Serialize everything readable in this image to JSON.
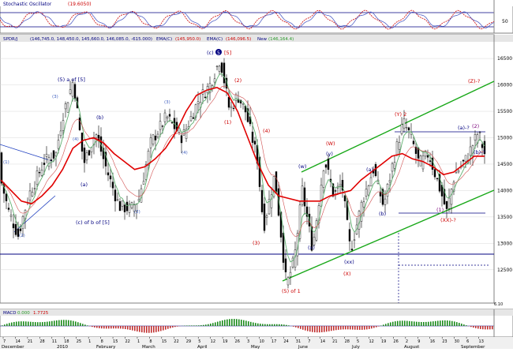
{
  "panels": {
    "stochastic": {
      "title": "Stochastic Oscillator",
      "value": "(19.6050)",
      "levels": [
        "50"
      ]
    },
    "price": {
      "header_symbol": "SPDR/J",
      "header_ohlc": "(146,745.0, 148,450.0, 145,660.0, 146,085.0, -615.000)",
      "header_ema1_label": "EMA(C)",
      "header_ema1_value": "(145,950.0)",
      "header_ema2_label": "EMA(C)",
      "header_ema2_value": "(146,096.5)",
      "header_new_label": "New",
      "header_new_value": "(146,164.4)"
    },
    "macd": {
      "title": "MACD",
      "value1": "0.000",
      "value2": "1.7725"
    }
  },
  "annotations": {
    "c5_label": "(c)",
    "c5_circle": "5",
    "c5_bracket": "[5]",
    "a_of_5": "(5) a of [5]",
    "c_of_b_of_5": "(c) of b of [5]",
    "five_of_1": "(5) of 1",
    "y2_label": "(Y) 2",
    "z_label": "(Z)-?",
    "a_q_label": "(a)-?",
    "b_q_label": "(b)-?",
    "xx_q_label": "(XX)-?",
    "w_red": "(W)",
    "w_blue": "(w)",
    "x_red": "(X)",
    "x_blue": "(x)",
    "xx_blue": "(xx)",
    "y_blue": "(y)",
    "paren_1": "(1)",
    "paren_2": "(2)",
    "paren_3": "(3)",
    "paren_4": "(4)",
    "paren_5": "(5)",
    "paren_a": "(a)",
    "paren_b": "(b)",
    "paren_2_purple": "(2)",
    "paren_1_purple": "(1)"
  },
  "colors": {
    "price_ma": "#e00000",
    "fast_ma": "#4fa860",
    "channel": "#18a818",
    "horizontal": "#000080",
    "wave_red": "#cc0000",
    "wave_blue": "#000080",
    "wave_purple": "#7a007a"
  },
  "chart_data": {
    "type": "candlestick",
    "y_axis": {
      "ticks": [
        12500,
        13000,
        13500,
        14000,
        14500,
        15000,
        15500,
        16000,
        16500
      ],
      "range": [
        11900,
        16800
      ]
    },
    "x_axis": {
      "months": [
        "December",
        "2010",
        "February",
        "March",
        "April",
        "May",
        "June",
        "July",
        "August",
        "September"
      ],
      "day_ticks": [
        "7",
        "14",
        "21",
        "28",
        "11",
        "18",
        "25",
        "1",
        "8",
        "15",
        "22",
        "1",
        "8",
        "15",
        "22",
        "29",
        "5",
        "12",
        "19",
        "26",
        "3",
        "10",
        "17",
        "24",
        "31",
        "7",
        "14",
        "21",
        "28",
        "5",
        "12",
        "19",
        "26",
        "2",
        "9",
        "16",
        "23",
        "30",
        "6",
        "13"
      ]
    },
    "price_path": [
      {
        "x": 0,
        "close": 14200
      },
      {
        "x": 10,
        "close": 13600
      },
      {
        "x": 22,
        "close": 13150
      },
      {
        "x": 35,
        "close": 13900
      },
      {
        "x": 55,
        "close": 14550
      },
      {
        "x": 70,
        "close": 14700
      },
      {
        "x": 78,
        "close": 15400
      },
      {
        "x": 92,
        "close": 16100
      },
      {
        "x": 105,
        "close": 14500
      },
      {
        "x": 120,
        "close": 15100
      },
      {
        "x": 135,
        "close": 14350
      },
      {
        "x": 150,
        "close": 13700
      },
      {
        "x": 165,
        "close": 13650
      },
      {
        "x": 175,
        "close": 13850
      },
      {
        "x": 190,
        "close": 14900
      },
      {
        "x": 210,
        "close": 15400
      },
      {
        "x": 230,
        "close": 15000
      },
      {
        "x": 250,
        "close": 15700
      },
      {
        "x": 265,
        "close": 16000
      },
      {
        "x": 278,
        "close": 16500
      },
      {
        "x": 290,
        "close": 15500
      },
      {
        "x": 300,
        "close": 15800
      },
      {
        "x": 310,
        "close": 15500
      },
      {
        "x": 325,
        "close": 14600
      },
      {
        "x": 333,
        "close": 13300
      },
      {
        "x": 347,
        "close": 14300
      },
      {
        "x": 362,
        "close": 12200
      },
      {
        "x": 372,
        "close": 12700
      },
      {
        "x": 382,
        "close": 14000
      },
      {
        "x": 395,
        "close": 12900
      },
      {
        "x": 410,
        "close": 14600
      },
      {
        "x": 422,
        "close": 13900
      },
      {
        "x": 432,
        "close": 14150
      },
      {
        "x": 443,
        "close": 12850
      },
      {
        "x": 458,
        "close": 13800
      },
      {
        "x": 472,
        "close": 14400
      },
      {
        "x": 485,
        "close": 13700
      },
      {
        "x": 498,
        "close": 14600
      },
      {
        "x": 510,
        "close": 15300
      },
      {
        "x": 520,
        "close": 15000
      },
      {
        "x": 530,
        "close": 14500
      },
      {
        "x": 542,
        "close": 14700
      },
      {
        "x": 557,
        "close": 14000
      },
      {
        "x": 565,
        "close": 13600
      },
      {
        "x": 575,
        "close": 14300
      },
      {
        "x": 590,
        "close": 14600
      },
      {
        "x": 605,
        "close": 15100
      },
      {
        "x": 613,
        "close": 14700
      }
    ],
    "series": [
      {
        "name": "EMA(C)",
        "values": [
          14200,
          14000,
          13800,
          13750,
          13900,
          14100,
          14400,
          14800,
          14950,
          15000,
          14900,
          14700,
          14550,
          14400,
          14450,
          14600,
          14800,
          15100,
          15500,
          15800,
          15900,
          15950,
          15850,
          15500,
          15000,
          14500,
          14100,
          13900,
          13850,
          13800,
          13800,
          13800,
          13900,
          13950,
          14000,
          14200,
          14350,
          14500,
          14650,
          14700,
          14600,
          14550,
          14450,
          14300,
          14350,
          14500,
          14650,
          14650
        ]
      }
    ]
  }
}
